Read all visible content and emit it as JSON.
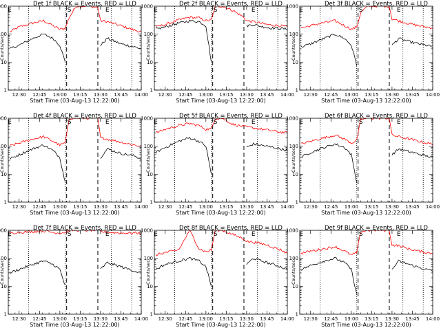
{
  "chart_data": {
    "type": "line",
    "layout": "3x3 panel grid",
    "yscale": "log",
    "ylim": [
      1,
      1000
    ],
    "yticks": [
      "1",
      "10",
      "100",
      "1000"
    ],
    "ylabel": "Counts/sec",
    "xlabel": "Start Time (03-Aug-13 12:22:00)",
    "xlim": [
      "12:22",
      "14:00"
    ],
    "xticks": [
      "12:30",
      "12:45",
      "13:00",
      "13:15",
      "13:30",
      "13:45",
      "14:00"
    ],
    "dotted_lines": [
      "12:37",
      "13:04",
      "13:38",
      "13:53"
    ],
    "dashed_lines": [
      "13:05",
      "13:28"
    ],
    "markers": [
      {
        "label": "E",
        "at": "12:23"
      },
      {
        "label": "S",
        "at": "13:07"
      },
      {
        "label": "E",
        "at": "13:35"
      }
    ],
    "colors": {
      "events": "#000000",
      "lld": "#ff0000"
    },
    "panels": [
      {
        "title": "Det 1f BLACK = Events, RED = LLD",
        "series": [
          {
            "name": "Events",
            "x": [
              "12:23",
              "12:30",
              "12:40",
              "12:48",
              "12:55",
              "13:00",
              "13:04",
              "13:07",
              "13:12",
              "13:20",
              "13:28",
              "13:30",
              "13:35",
              "13:45",
              "13:55",
              "14:00"
            ],
            "y": [
              30,
              40,
              70,
              100,
              70,
              40,
              10,
              null,
              null,
              null,
              null,
              40,
              70,
              45,
              35,
              30
            ]
          },
          {
            "name": "LLD",
            "x": [
              "12:23",
              "12:30",
              "12:40",
              "12:48",
              "12:55",
              "13:00",
              "13:04",
              "13:07",
              "13:12",
              "13:20",
              "13:28",
              "13:30",
              "13:35",
              "13:45",
              "13:55",
              "14:00"
            ],
            "y": [
              120,
              180,
              250,
              300,
              200,
              150,
              160,
              400,
              1000,
              1000,
              900,
              300,
              280,
              200,
              140,
              120
            ]
          }
        ]
      },
      {
        "title": "Det 2f BLACK = Events, RED = LLD",
        "series": [
          {
            "name": "Events",
            "x": [
              "12:23",
              "12:30",
              "12:40",
              "12:48",
              "12:55",
              "13:00",
              "13:04",
              "13:07",
              "13:12",
              "13:20",
              "13:28",
              "13:30",
              "13:35",
              "13:45",
              "13:55",
              "14:00"
            ],
            "y": [
              150,
              180,
              250,
              300,
              280,
              200,
              10,
              null,
              null,
              null,
              null,
              200,
              220,
              170,
              160,
              150
            ]
          },
          {
            "name": "LLD",
            "x": [
              "12:23",
              "12:30",
              "12:40",
              "12:48",
              "12:55",
              "13:00",
              "13:04",
              "13:07",
              "13:12",
              "13:20",
              "13:28",
              "13:30",
              "13:35",
              "13:45",
              "13:55",
              "14:00"
            ],
            "y": [
              180,
              220,
              320,
              400,
              380,
              300,
              320,
              1000,
              1000,
              700,
              400,
              300,
              280,
              220,
              200,
              180
            ]
          }
        ]
      },
      {
        "title": "Det 3f BLACK = Events, RED = LLD",
        "series": [
          {
            "name": "Events",
            "x": [
              "12:23",
              "12:30",
              "12:40",
              "12:48",
              "12:55",
              "13:00",
              "13:04",
              "13:07",
              "13:12",
              "13:20",
              "13:28",
              "13:30",
              "13:35",
              "13:45",
              "13:55",
              "14:00"
            ],
            "y": [
              35,
              45,
              70,
              100,
              70,
              40,
              8,
              null,
              null,
              null,
              null,
              40,
              70,
              50,
              40,
              35
            ]
          },
          {
            "name": "LLD",
            "x": [
              "12:23",
              "12:30",
              "12:40",
              "12:48",
              "12:55",
              "13:00",
              "13:04",
              "13:07",
              "13:12",
              "13:20",
              "13:28",
              "13:30",
              "13:35",
              "13:45",
              "13:55",
              "14:00"
            ],
            "y": [
              170,
              200,
              260,
              300,
              200,
              150,
              180,
              600,
              1000,
              1000,
              1000,
              350,
              300,
              220,
              180,
              170
            ]
          }
        ]
      },
      {
        "title": "Det 4f BLACK = Events, RED = LLD",
        "series": [
          {
            "name": "Events",
            "x": [
              "12:23",
              "12:30",
              "12:40",
              "12:48",
              "12:55",
              "13:00",
              "13:04",
              "13:07",
              "13:12",
              "13:20",
              "13:28",
              "13:30",
              "13:35",
              "13:45",
              "13:55",
              "14:00"
            ],
            "y": [
              35,
              50,
              80,
              110,
              70,
              40,
              5,
              null,
              null,
              null,
              null,
              40,
              80,
              55,
              45,
              35
            ]
          },
          {
            "name": "LLD",
            "x": [
              "12:23",
              "12:30",
              "12:40",
              "12:48",
              "12:55",
              "13:00",
              "13:04",
              "13:07",
              "13:12",
              "13:20",
              "13:28",
              "13:30",
              "13:35",
              "13:45",
              "13:55",
              "14:00"
            ],
            "y": [
              100,
              130,
              180,
              220,
              150,
              110,
              130,
              1000,
              1000,
              1000,
              1000,
              200,
              180,
              140,
              110,
              100
            ]
          }
        ]
      },
      {
        "title": "Det 5f BLACK = Events, RED = LLD",
        "series": [
          {
            "name": "Events",
            "x": [
              "12:23",
              "12:30",
              "12:40",
              "12:48",
              "12:55",
              "13:00",
              "13:04",
              "13:07",
              "13:12",
              "13:20",
              "13:28",
              "13:30",
              "13:35",
              "13:45",
              "13:55",
              "14:00"
            ],
            "y": [
              60,
              90,
              150,
              200,
              150,
              100,
              10,
              null,
              null,
              null,
              null,
              90,
              120,
              100,
              80,
              70
            ]
          },
          {
            "name": "LLD",
            "x": [
              "12:23",
              "12:30",
              "12:40",
              "12:48",
              "12:55",
              "13:00",
              "13:04",
              "13:07",
              "13:12",
              "13:20",
              "13:28",
              "13:30",
              "13:35",
              "13:45",
              "13:55",
              "14:00"
            ],
            "y": [
              300,
              400,
              550,
              650,
              550,
              400,
              420,
              1000,
              1000,
              600,
              500,
              480,
              450,
              380,
              320,
              300
            ]
          }
        ]
      },
      {
        "title": "Det 6f BLACK = Events, RED = LLD",
        "series": [
          {
            "name": "Events",
            "x": [
              "12:23",
              "12:30",
              "12:40",
              "12:48",
              "12:55",
              "13:00",
              "13:04",
              "13:07",
              "13:12",
              "13:20",
              "13:28",
              "13:30",
              "13:35",
              "13:45",
              "13:55",
              "14:00"
            ],
            "y": [
              40,
              60,
              90,
              120,
              90,
              50,
              5,
              null,
              null,
              null,
              null,
              50,
              80,
              60,
              45,
              40
            ]
          },
          {
            "name": "LLD",
            "x": [
              "12:23",
              "12:30",
              "12:40",
              "12:48",
              "12:55",
              "13:00",
              "13:04",
              "13:07",
              "13:12",
              "13:20",
              "13:28",
              "13:30",
              "13:35",
              "13:45",
              "13:55",
              "14:00"
            ],
            "y": [
              120,
              150,
              200,
              250,
              180,
              130,
              160,
              900,
              1000,
              1000,
              1000,
              250,
              220,
              170,
              130,
              120
            ]
          }
        ]
      },
      {
        "title": "Det 7f BLACK = Events, RED = LLD",
        "series": [
          {
            "name": "Events",
            "x": [
              "12:23",
              "12:30",
              "12:40",
              "12:48",
              "12:55",
              "13:00",
              "13:04",
              "13:07",
              "13:12",
              "13:20",
              "13:28",
              "13:30",
              "13:35",
              "13:45",
              "13:55",
              "14:00"
            ],
            "y": [
              30,
              40,
              60,
              80,
              60,
              40,
              10,
              null,
              null,
              null,
              null,
              40,
              70,
              50,
              35,
              30
            ]
          },
          {
            "name": "LLD",
            "x": [
              "12:23",
              "12:30",
              "12:40",
              "12:48",
              "12:55",
              "13:00",
              "13:04",
              "13:07",
              "13:12",
              "13:20",
              "13:28",
              "13:30",
              "13:35",
              "13:45",
              "13:55",
              "14:00"
            ],
            "y": [
              800,
              850,
              900,
              950,
              850,
              800,
              850,
              1000,
              1000,
              1000,
              1000,
              900,
              850,
              800,
              800,
              800
            ]
          }
        ]
      },
      {
        "title": "Det 8f BLACK = Events, RED = LLD",
        "series": [
          {
            "name": "Events",
            "x": [
              "12:23",
              "12:30",
              "12:40",
              "12:48",
              "12:55",
              "13:00",
              "13:04",
              "13:07",
              "13:12",
              "13:20",
              "13:28",
              "13:30",
              "13:35",
              "13:45",
              "13:55",
              "14:00"
            ],
            "y": [
              40,
              60,
              80,
              100,
              80,
              50,
              10,
              null,
              null,
              null,
              null,
              60,
              100,
              70,
              50,
              40
            ]
          },
          {
            "name": "LLD",
            "x": [
              "12:23",
              "12:30",
              "12:40",
              "12:48",
              "12:55",
              "13:00",
              "13:04",
              "13:07",
              "13:12",
              "13:20",
              "13:28",
              "13:30",
              "13:35",
              "13:45",
              "13:55",
              "14:00"
            ],
            "y": [
              130,
              160,
              200,
              1000,
              220,
              170,
              200,
              1000,
              1000,
              700,
              500,
              400,
              380,
              300,
              200,
              150
            ]
          }
        ]
      },
      {
        "title": "Det 9f BLACK = Events, RED = LLD",
        "series": [
          {
            "name": "Events",
            "x": [
              "12:23",
              "12:30",
              "12:40",
              "12:48",
              "12:55",
              "13:00",
              "13:04",
              "13:07",
              "13:12",
              "13:20",
              "13:28",
              "13:30",
              "13:35",
              "13:45",
              "13:55",
              "14:00"
            ],
            "y": [
              40,
              55,
              80,
              100,
              70,
              40,
              5,
              null,
              null,
              null,
              null,
              40,
              80,
              55,
              40,
              35
            ]
          },
          {
            "name": "LLD",
            "x": [
              "12:23",
              "12:30",
              "12:40",
              "12:48",
              "12:55",
              "13:00",
              "13:04",
              "13:07",
              "13:12",
              "13:20",
              "13:28",
              "13:30",
              "13:35",
              "13:45",
              "13:55",
              "14:00"
            ],
            "y": [
              150,
              180,
              220,
              260,
              180,
              130,
              160,
              900,
              1000,
              1000,
              1000,
              300,
              280,
              200,
              160,
              150
            ]
          }
        ]
      }
    ]
  }
}
